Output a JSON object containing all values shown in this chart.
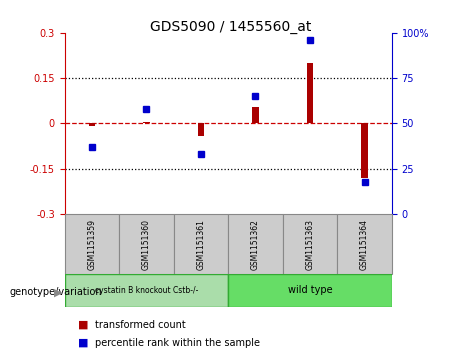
{
  "title": "GDS5090 / 1455560_at",
  "samples": [
    "GSM1151359",
    "GSM1151360",
    "GSM1151361",
    "GSM1151362",
    "GSM1151363",
    "GSM1151364"
  ],
  "transformed_count": [
    -0.01,
    0.005,
    -0.04,
    0.055,
    0.2,
    -0.18
  ],
  "percentile_rank": [
    37,
    58,
    33,
    65,
    96,
    18
  ],
  "ylim_left": [
    -0.3,
    0.3
  ],
  "ylim_right": [
    0,
    100
  ],
  "yticks_left": [
    -0.3,
    -0.15,
    0.0,
    0.15,
    0.3
  ],
  "yticks_right": [
    0,
    25,
    50,
    75,
    100
  ],
  "bar_color": "#aa0000",
  "dot_color": "#0000cc",
  "zero_line_color": "#cc0000",
  "dotted_line_color": "#000000",
  "group1_label": "cystatin B knockout Cstb-/-",
  "group2_label": "wild type",
  "group1_color": "#aaddaa",
  "group2_color": "#66dd66",
  "group1_indices": [
    0,
    1,
    2
  ],
  "group2_indices": [
    3,
    4,
    5
  ],
  "legend_bar_label": "transformed count",
  "legend_dot_label": "percentile rank within the sample",
  "genotype_label": "genotype/variation",
  "bg_color": "#cccccc"
}
